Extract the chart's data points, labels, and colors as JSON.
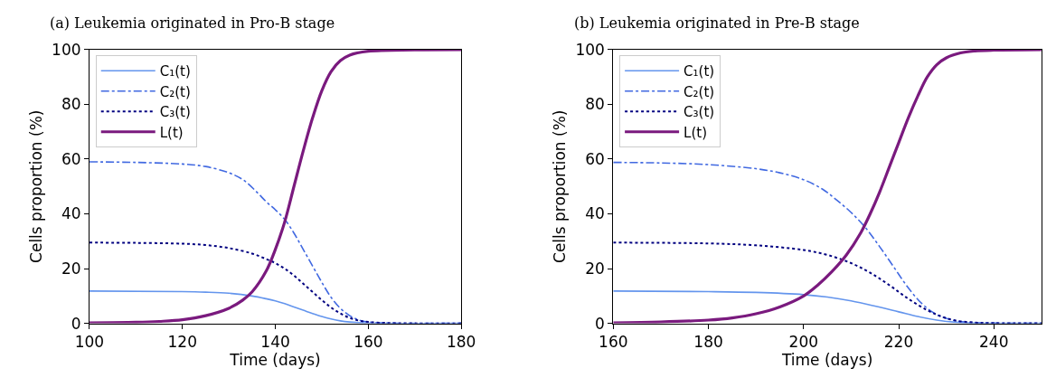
{
  "chart_data": [
    {
      "type": "line",
      "title": "(a) Leukemia originated in Pro-B stage",
      "xlabel": "Time (days)",
      "ylabel": "Cells proportion (%)",
      "xlim": [
        100,
        180
      ],
      "xticks": [
        100,
        120,
        140,
        160,
        180
      ],
      "ylim": [
        0,
        100
      ],
      "yticks": [
        0,
        20,
        40,
        60,
        80,
        100
      ],
      "legend": "top left",
      "marker": "none",
      "series": [
        {
          "name": "C₁(t)",
          "color": "#6495ed",
          "line_style": "solid",
          "x": [
            100,
            120,
            125,
            130,
            135,
            138,
            140,
            142,
            144,
            146,
            148,
            150,
            152,
            154,
            156,
            160,
            180
          ],
          "values": [
            11.8,
            11.6,
            11.4,
            11,
            10,
            9,
            8.2,
            7.2,
            6,
            4.8,
            3.6,
            2.5,
            1.6,
            0.9,
            0.5,
            0.1,
            0
          ]
        },
        {
          "name": "C₂(t)",
          "color": "#4169e1",
          "line_style": "dashdot",
          "x": [
            100,
            110,
            120,
            125,
            130,
            133,
            136,
            138,
            140,
            142,
            144,
            146,
            148,
            150,
            152,
            154,
            156,
            158,
            160,
            165,
            180
          ],
          "values": [
            59,
            58.8,
            58.2,
            57.3,
            55,
            52.5,
            48,
            44.5,
            41.5,
            38,
            33,
            27,
            21,
            15,
            9.5,
            5.5,
            2.8,
            1.2,
            0.5,
            0.1,
            0
          ]
        },
        {
          "name": "C₃(t)",
          "color": "#000080",
          "line_style": "dotted",
          "x": [
            100,
            110,
            120,
            125,
            130,
            135,
            138,
            140,
            142,
            144,
            146,
            148,
            150,
            152,
            154,
            156,
            158,
            160,
            165,
            180
          ],
          "values": [
            29.5,
            29.4,
            29.1,
            28.6,
            27.5,
            25.5,
            23.5,
            22,
            20,
            17.5,
            14.5,
            11.5,
            8.5,
            5.8,
            3.6,
            2,
            1,
            0.5,
            0.1,
            0
          ]
        },
        {
          "name": "L(t)",
          "color": "#7a1a7e",
          "line_style": "solid",
          "x": [
            100,
            110,
            115,
            120,
            125,
            130,
            133,
            135,
            138,
            140,
            142,
            144,
            146,
            148,
            150,
            152,
            154,
            156,
            160,
            170,
            180
          ],
          "values": [
            0.2,
            0.4,
            0.7,
            1.3,
            2.8,
            5.5,
            8.5,
            11.5,
            19,
            27,
            37,
            50,
            63,
            75,
            85,
            92,
            96,
            98,
            99.4,
            99.9,
            100
          ]
        }
      ]
    },
    {
      "type": "line",
      "title": "(b) Leukemia originated in Pre-B stage",
      "xlabel": "Time (days)",
      "ylabel": "Cells proportion (%)",
      "xlim": [
        160,
        250
      ],
      "xticks": [
        160,
        180,
        200,
        220,
        240
      ],
      "ylim": [
        0,
        100
      ],
      "yticks": [
        0,
        20,
        40,
        60,
        80,
        100
      ],
      "legend": "top left",
      "marker": "none",
      "series": [
        {
          "name": "C₁(t)",
          "color": "#6495ed",
          "line_style": "solid",
          "x": [
            160,
            180,
            190,
            200,
            205,
            210,
            215,
            220,
            224,
            228,
            232,
            236,
            250
          ],
          "values": [
            11.8,
            11.6,
            11.3,
            10.5,
            9.6,
            8.2,
            6.3,
            4.2,
            2.5,
            1.2,
            0.4,
            0.1,
            0
          ]
        },
        {
          "name": "C₂(t)",
          "color": "#4169e1",
          "line_style": "dashdot",
          "x": [
            160,
            170,
            180,
            190,
            195,
            200,
            204,
            207,
            210,
            213,
            216,
            219,
            222,
            225,
            228,
            231,
            234,
            240,
            250
          ],
          "values": [
            58.8,
            58.6,
            58,
            56.5,
            55,
            52.5,
            49,
            45,
            40.5,
            35,
            28,
            20.5,
            13,
            7,
            3.2,
            1.3,
            0.5,
            0.1,
            0
          ]
        },
        {
          "name": "C₃(t)",
          "color": "#000080",
          "line_style": "dotted",
          "x": [
            160,
            180,
            190,
            200,
            205,
            210,
            214,
            218,
            222,
            226,
            229,
            232,
            236,
            240,
            250
          ],
          "values": [
            29.5,
            29.2,
            28.5,
            26.8,
            25,
            22,
            18.5,
            14,
            9,
            4.8,
            2.5,
            1,
            0.3,
            0.1,
            0
          ]
        },
        {
          "name": "L(t)",
          "color": "#7a1a7e",
          "line_style": "solid",
          "x": [
            160,
            170,
            180,
            185,
            190,
            195,
            200,
            203,
            206,
            209,
            212,
            214,
            216,
            218,
            220,
            222,
            224,
            226,
            228,
            230,
            233,
            236,
            240,
            250
          ],
          "values": [
            0.2,
            0.5,
            1.2,
            2,
            3.5,
            6,
            10,
            14,
            19,
            25,
            33,
            40,
            48,
            57,
            66,
            75,
            83,
            90,
            94.5,
            97,
            98.8,
            99.5,
            99.8,
            100
          ]
        }
      ]
    }
  ]
}
